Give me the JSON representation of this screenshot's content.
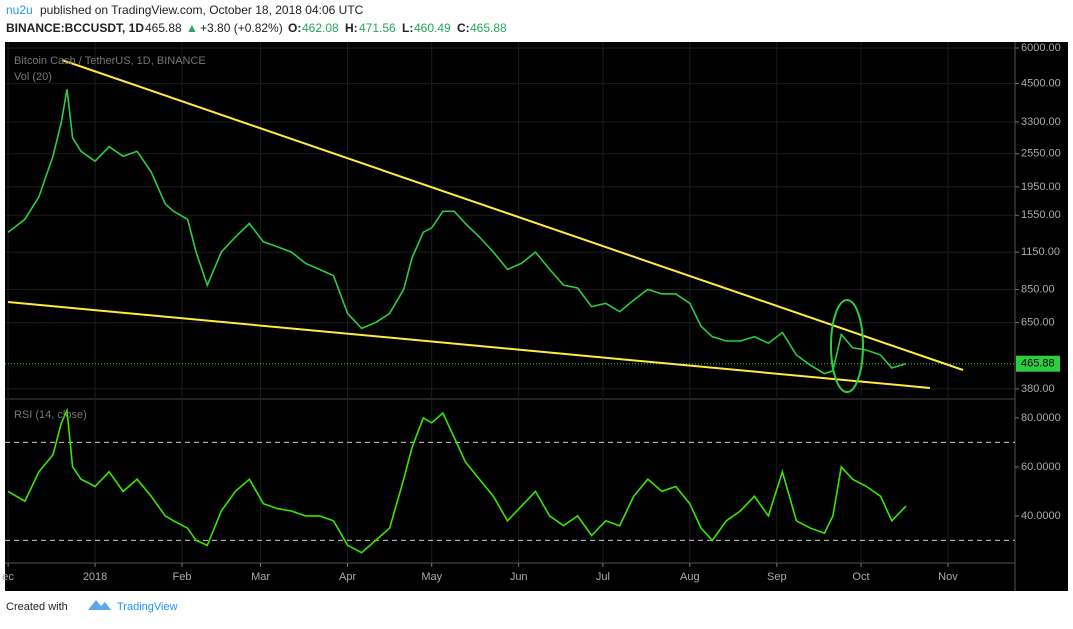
{
  "header": {
    "user": "nu2u",
    "published": "published on TradingView.com, October 18, 2018 04:06 UTC",
    "symbol": "BINANCE:BCCUSDT, 1D",
    "price": "465.88",
    "arrow": "▲",
    "change": "+3.80 (+0.82%)",
    "o_label": "O:",
    "o": "462.08",
    "h_label": "H:",
    "h": "471.56",
    "l_label": "L:",
    "l": "460.49",
    "c_label": "C:",
    "c": "465.88"
  },
  "footer": {
    "created": "Created with",
    "brand": "TradingView"
  },
  "chart_data": [
    {
      "type": "line",
      "title": "Bitcoin Cash / TetherUS, 1D, BINANCE",
      "subtitle": "Vol (20)",
      "x": [
        -31,
        -25,
        -20,
        -15,
        -12,
        -10,
        -8,
        -5,
        0,
        5,
        10,
        15,
        20,
        25,
        28,
        33,
        36,
        40,
        45,
        50,
        55,
        60,
        65,
        70,
        75,
        80,
        85,
        90,
        95,
        100,
        105,
        110,
        113,
        117,
        120,
        124,
        128,
        132,
        137,
        142,
        147,
        152,
        157,
        162,
        167,
        172,
        177,
        182,
        187,
        192,
        197,
        202,
        207,
        212,
        216,
        220,
        225,
        230,
        235,
        240,
        245,
        250,
        255,
        260,
        263,
        266,
        270,
        275,
        280,
        284,
        289
      ],
      "xlim": [
        -32.1,
        327.9
      ],
      "xticks": [
        {
          "value": -31,
          "label": "ec"
        },
        {
          "value": 0,
          "label": "2018"
        },
        {
          "value": 31,
          "label": "Feb"
        },
        {
          "value": 59,
          "label": "Mar"
        },
        {
          "value": 90,
          "label": "Apr"
        },
        {
          "value": 120,
          "label": "May"
        },
        {
          "value": 151,
          "label": "Jun"
        },
        {
          "value": 181,
          "label": "Jul"
        },
        {
          "value": 212,
          "label": "Aug"
        },
        {
          "value": 243,
          "label": "Sep"
        },
        {
          "value": 273,
          "label": "Oct"
        },
        {
          "value": 304,
          "label": "Nov"
        }
      ],
      "ylim": [
        353,
        6300
      ],
      "log_scale": true,
      "yticks": [
        {
          "value": 6000,
          "label": "6000.00"
        },
        {
          "value": 4500,
          "label": "4500.00"
        },
        {
          "value": 3300,
          "label": "3300.00"
        },
        {
          "value": 2550,
          "label": "2550.00"
        },
        {
          "value": 1950,
          "label": "1950.00"
        },
        {
          "value": 1550,
          "label": "1550.00"
        },
        {
          "value": 1150,
          "label": "1150.00"
        },
        {
          "value": 850,
          "label": "850.00"
        },
        {
          "value": 650,
          "label": "650.00"
        },
        {
          "value": 380,
          "label": "380.00"
        }
      ],
      "grid": true,
      "last_value": {
        "value": 465.88,
        "label": "465.88"
      },
      "series": [
        {
          "color": "#2ecc40",
          "values": [
            1350,
            1500,
            1800,
            2500,
            3300,
            4300,
            2900,
            2600,
            2400,
            2700,
            2500,
            2600,
            2200,
            1700,
            1600,
            1500,
            1150,
            880,
            1150,
            1300,
            1450,
            1250,
            1200,
            1150,
            1050,
            1000,
            950,
            700,
            620,
            650,
            700,
            850,
            1100,
            1350,
            1400,
            1600,
            1600,
            1450,
            1300,
            1150,
            1000,
            1050,
            1150,
            1000,
            880,
            860,
            740,
            760,
            710,
            780,
            850,
            820,
            820,
            760,
            630,
            580,
            560,
            560,
            580,
            550,
            600,
            500,
            460,
            430,
            440,
            590,
            530,
            520,
            500,
            450,
            466
          ]
        }
      ]
    },
    {
      "type": "line",
      "title": "RSI (14, close)",
      "x": [
        -31,
        -25,
        -20,
        -15,
        -12,
        -10,
        -8,
        -5,
        0,
        5,
        10,
        15,
        20,
        25,
        28,
        33,
        36,
        40,
        45,
        50,
        55,
        60,
        65,
        70,
        75,
        80,
        85,
        90,
        95,
        100,
        105,
        110,
        113,
        117,
        120,
        124,
        128,
        132,
        137,
        142,
        147,
        152,
        157,
        162,
        167,
        172,
        177,
        182,
        187,
        192,
        197,
        202,
        207,
        212,
        216,
        220,
        225,
        230,
        235,
        240,
        245,
        250,
        255,
        260,
        263,
        266,
        270,
        275,
        280,
        284,
        289
      ],
      "xlim": [
        -32.1,
        327.9
      ],
      "ylim": [
        21.2,
        87.3
      ],
      "yticks": [
        {
          "value": 80,
          "label": "80.0000"
        },
        {
          "value": 60,
          "label": "60.0000"
        },
        {
          "value": 40,
          "label": "40.0000"
        }
      ],
      "levels": [
        70,
        30
      ],
      "series": [
        {
          "color": "#39e600",
          "values": [
            50,
            46,
            58,
            65,
            78,
            83,
            60,
            55,
            52,
            58,
            50,
            55,
            48,
            40,
            38,
            35,
            30,
            28,
            42,
            50,
            55,
            45,
            43,
            42,
            40,
            40,
            38,
            28,
            25,
            30,
            35,
            55,
            68,
            80,
            78,
            82,
            72,
            62,
            55,
            48,
            38,
            44,
            50,
            40,
            36,
            40,
            32,
            38,
            36,
            48,
            55,
            50,
            52,
            45,
            35,
            30,
            38,
            42,
            48,
            40,
            58,
            38,
            35,
            33,
            40,
            60,
            55,
            52,
            48,
            38,
            44
          ]
        }
      ]
    }
  ]
}
